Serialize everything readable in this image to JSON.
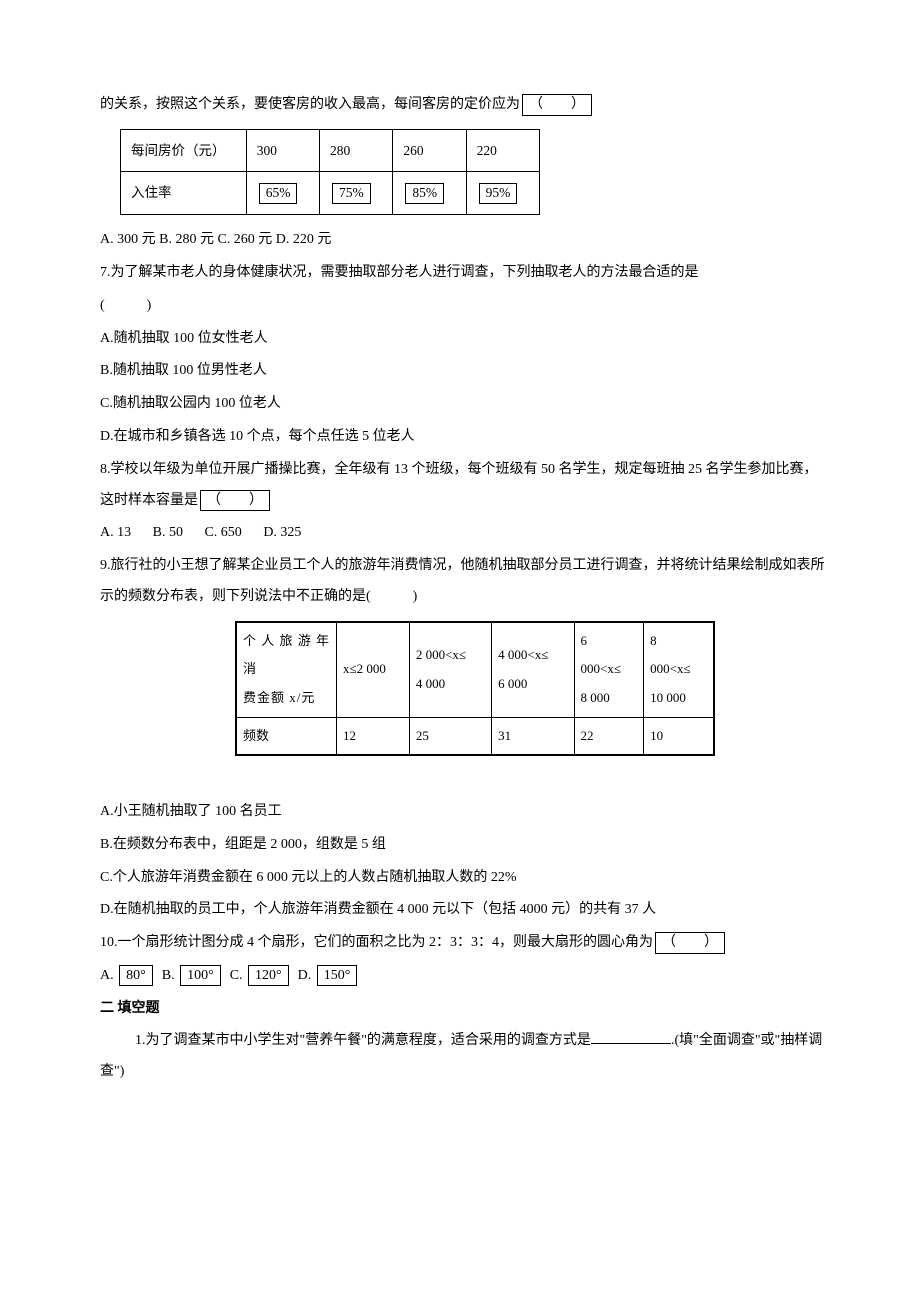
{
  "q6_prefix": "的关系，按照这个关系，要使客房的收入最高，每间客房的定价应为",
  "q6_paren": "（　　）",
  "table1": {
    "headers": [
      "每间房价（元）",
      "300",
      "280",
      "260",
      "220"
    ],
    "row2_label": "入住率",
    "row2_values": [
      "65%",
      "75%",
      "85%",
      "95%"
    ]
  },
  "q6_options": "A. 300 元 B. 280 元 C. 260 元 D. 220 元",
  "q7_text": "7.为了解某市老人的身体健康状况，需要抽取部分老人进行调查，下列抽取老人的方法最合适的是",
  "q7_paren": "(　　　)",
  "q7_a": "A.随机抽取 100 位女性老人",
  "q7_b": "B.随机抽取 100 位男性老人",
  "q7_c": "C.随机抽取公园内 100 位老人",
  "q7_d": "D.在城市和乡镇各选 10 个点，每个点任选 5 位老人",
  "q8_text": "8.学校以年级为单位开展广播操比赛，全年级有 13 个班级，每个班级有 50 名学生，规定每班抽 25 名学生参加比赛，这时样本容量是",
  "q8_paren": "（　　）",
  "q8_options": {
    "a": "A. 13",
    "b": "B. 50",
    "c": "C. 650",
    "d": "D. 325"
  },
  "q9_text": "9.旅行社的小王想了解某企业员工个人的旅游年消费情况，他随机抽取部分员工进行调查，并将统计结果绘制成如表所示的频数分布表，则下列说法中不正确的是(　　　)",
  "table2": {
    "row1_col1_line1": "个 人 旅 游 年",
    "row1_col1_line2": "消",
    "row1_col1_line3": "费金额 x/元",
    "row1_cols": [
      "x≤2 000",
      "2 000<x≤ 4 000",
      "4 000<x≤ 6 000",
      "6 000<x≤ 8 000",
      "8 000<x≤ 10 000"
    ],
    "row2_label": "频数",
    "row2_values": [
      "12",
      "25",
      "31",
      "22",
      "10"
    ]
  },
  "q9_a": "A.小王随机抽取了 100 名员工",
  "q9_b": "B.在频数分布表中，组距是 2 000，组数是 5 组",
  "q9_c": "C.个人旅游年消费金额在 6 000 元以上的人数占随机抽取人数的 22%",
  "q9_d": "D.在随机抽取的员工中，个人旅游年消费金额在 4 000 元以下（包括 4000 元）的共有 37 人",
  "q10_text": "10.一个扇形统计图分成 4 个扇形，它们的面积之比为 2：3：3：4，则最大扇形的圆心角为",
  "q10_paren": "（　　）",
  "q10_options": {
    "a_label": "A.",
    "a_val": "80°",
    "b_label": "B.",
    "b_val": "100°",
    "c_label": "C.",
    "c_val": "120°",
    "d_label": "D.",
    "d_val": "150°"
  },
  "section2": "二  填空题",
  "fill_q1_pre": "1.为了调查某市中小学生对\"营养午餐\"的满意程度，适合采用的调查方式是",
  "fill_q1_suf": ".(填\"全面调查\"或\"抽样调查\")"
}
